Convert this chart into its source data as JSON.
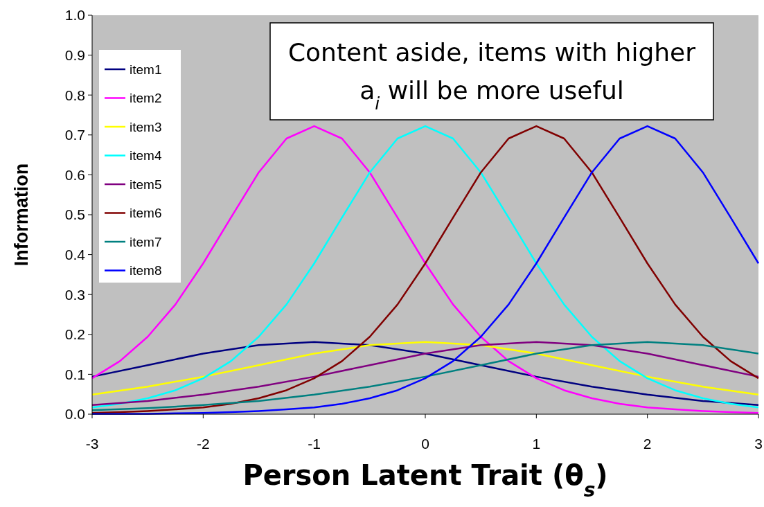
{
  "chart_data": {
    "type": "line",
    "xlabel": "Person Latent Trait (θ$_{s}$)",
    "ylabel": "Information",
    "annotations": [
      "Content aside, items with higher a$_{i}$ will be more useful"
    ],
    "xlim": [
      -3,
      3
    ],
    "xticks": [
      -3,
      -2,
      -1,
      0,
      1,
      2,
      3
    ],
    "ylim": [
      0,
      1
    ],
    "yticks": [
      {
        "value": 0,
        "label": "0.0"
      },
      {
        "value": 0.1,
        "label": "0.1"
      },
      {
        "value": 0.2,
        "label": "0.2"
      },
      {
        "value": 0.3,
        "label": "0.3"
      },
      {
        "value": 0.4,
        "label": "0.4"
      },
      {
        "value": 0.5,
        "label": "0.5"
      },
      {
        "value": 0.6,
        "label": "0.6"
      },
      {
        "value": 0.7,
        "label": "0.7"
      },
      {
        "value": 0.8,
        "label": "0.8"
      },
      {
        "value": 0.9,
        "label": "0.9"
      },
      {
        "value": 1,
        "label": "1.0"
      }
    ],
    "grid": false,
    "legend": "top left",
    "marker": "none",
    "line_style": "solid",
    "series": [
      {
        "name": "item1",
        "color": "#000080",
        "x": [
          -3,
          -2.5,
          -2,
          -1.5,
          -1,
          -0.5,
          0,
          0.5,
          1,
          1.5,
          2,
          2.5,
          3
        ],
        "values": [
          0.094,
          0.123,
          0.152,
          0.173,
          0.181,
          0.173,
          0.152,
          0.123,
          0.094,
          0.069,
          0.049,
          0.033,
          0.023
        ]
      },
      {
        "name": "item2",
        "color": "#ff00ff",
        "x": [
          -3,
          -2.75,
          -2.5,
          -2.25,
          -2,
          -1.75,
          -1.5,
          -1.25,
          -1,
          -0.75,
          -0.5,
          -0.25,
          0,
          0.25,
          0.5,
          0.75,
          1,
          1.25,
          1.5,
          1.75,
          2,
          2.25,
          2.5,
          2.75,
          3
        ],
        "values": [
          0.09,
          0.133,
          0.194,
          0.275,
          0.378,
          0.493,
          0.606,
          0.691,
          0.722,
          0.691,
          0.606,
          0.493,
          0.378,
          0.275,
          0.194,
          0.133,
          0.09,
          0.06,
          0.04,
          0.026,
          0.017,
          0.012,
          0.008,
          0.005,
          0.003
        ]
      },
      {
        "name": "item3",
        "color": "#ffff00",
        "x": [
          -3,
          -2.5,
          -2,
          -1.5,
          -1,
          -0.5,
          0,
          0.5,
          1,
          1.5,
          2,
          2.5,
          3
        ],
        "values": [
          0.049,
          0.069,
          0.094,
          0.123,
          0.152,
          0.173,
          0.181,
          0.173,
          0.152,
          0.123,
          0.094,
          0.069,
          0.049
        ]
      },
      {
        "name": "item4",
        "color": "#00ffff",
        "x": [
          -3,
          -2.75,
          -2.5,
          -2.25,
          -2,
          -1.75,
          -1.5,
          -1.25,
          -1,
          -0.75,
          -0.5,
          -0.25,
          0,
          0.25,
          0.5,
          0.75,
          1,
          1.25,
          1.5,
          1.75,
          2,
          2.25,
          2.5,
          2.75,
          3
        ],
        "values": [
          0.017,
          0.026,
          0.04,
          0.06,
          0.09,
          0.133,
          0.194,
          0.275,
          0.378,
          0.493,
          0.606,
          0.691,
          0.722,
          0.691,
          0.606,
          0.493,
          0.378,
          0.275,
          0.194,
          0.133,
          0.09,
          0.06,
          0.04,
          0.026,
          0.017
        ]
      },
      {
        "name": "item5",
        "color": "#800080",
        "x": [
          -3,
          -2.5,
          -2,
          -1.5,
          -1,
          -0.5,
          0,
          0.5,
          1,
          1.5,
          2,
          2.5,
          3
        ],
        "values": [
          0.023,
          0.033,
          0.049,
          0.069,
          0.094,
          0.123,
          0.152,
          0.173,
          0.181,
          0.173,
          0.152,
          0.123,
          0.094
        ]
      },
      {
        "name": "item6",
        "color": "#800000",
        "x": [
          -3,
          -2.75,
          -2.5,
          -2.25,
          -2,
          -1.75,
          -1.5,
          -1.25,
          -1,
          -0.75,
          -0.5,
          -0.25,
          0,
          0.25,
          0.5,
          0.75,
          1,
          1.25,
          1.5,
          1.75,
          2,
          2.25,
          2.5,
          2.75,
          3
        ],
        "values": [
          0.003,
          0.005,
          0.008,
          0.012,
          0.017,
          0.026,
          0.04,
          0.06,
          0.09,
          0.133,
          0.194,
          0.275,
          0.378,
          0.493,
          0.606,
          0.691,
          0.722,
          0.691,
          0.606,
          0.493,
          0.378,
          0.275,
          0.194,
          0.133,
          0.09
        ]
      },
      {
        "name": "item7",
        "color": "#008080",
        "x": [
          -3,
          -2.5,
          -2,
          -1.5,
          -1,
          -0.5,
          0,
          0.5,
          1,
          1.5,
          2,
          2.5,
          3
        ],
        "values": [
          0.01,
          0.015,
          0.023,
          0.033,
          0.049,
          0.069,
          0.094,
          0.123,
          0.152,
          0.173,
          0.181,
          0.173,
          0.152
        ]
      },
      {
        "name": "item8",
        "color": "#0000ff",
        "x": [
          -3,
          -2.75,
          -2.5,
          -2.25,
          -2,
          -1.75,
          -1.5,
          -1.25,
          -1,
          -0.75,
          -0.5,
          -0.25,
          0,
          0.25,
          0.5,
          0.75,
          1,
          1.25,
          1.5,
          1.75,
          2,
          2.25,
          2.5,
          2.75,
          3
        ],
        "values": [
          0.001,
          0.001,
          0.001,
          0.002,
          0.003,
          0.005,
          0.008,
          0.012,
          0.017,
          0.026,
          0.04,
          0.06,
          0.09,
          0.133,
          0.194,
          0.275,
          0.378,
          0.493,
          0.606,
          0.691,
          0.722,
          0.691,
          0.606,
          0.493,
          0.378
        ]
      }
    ]
  }
}
